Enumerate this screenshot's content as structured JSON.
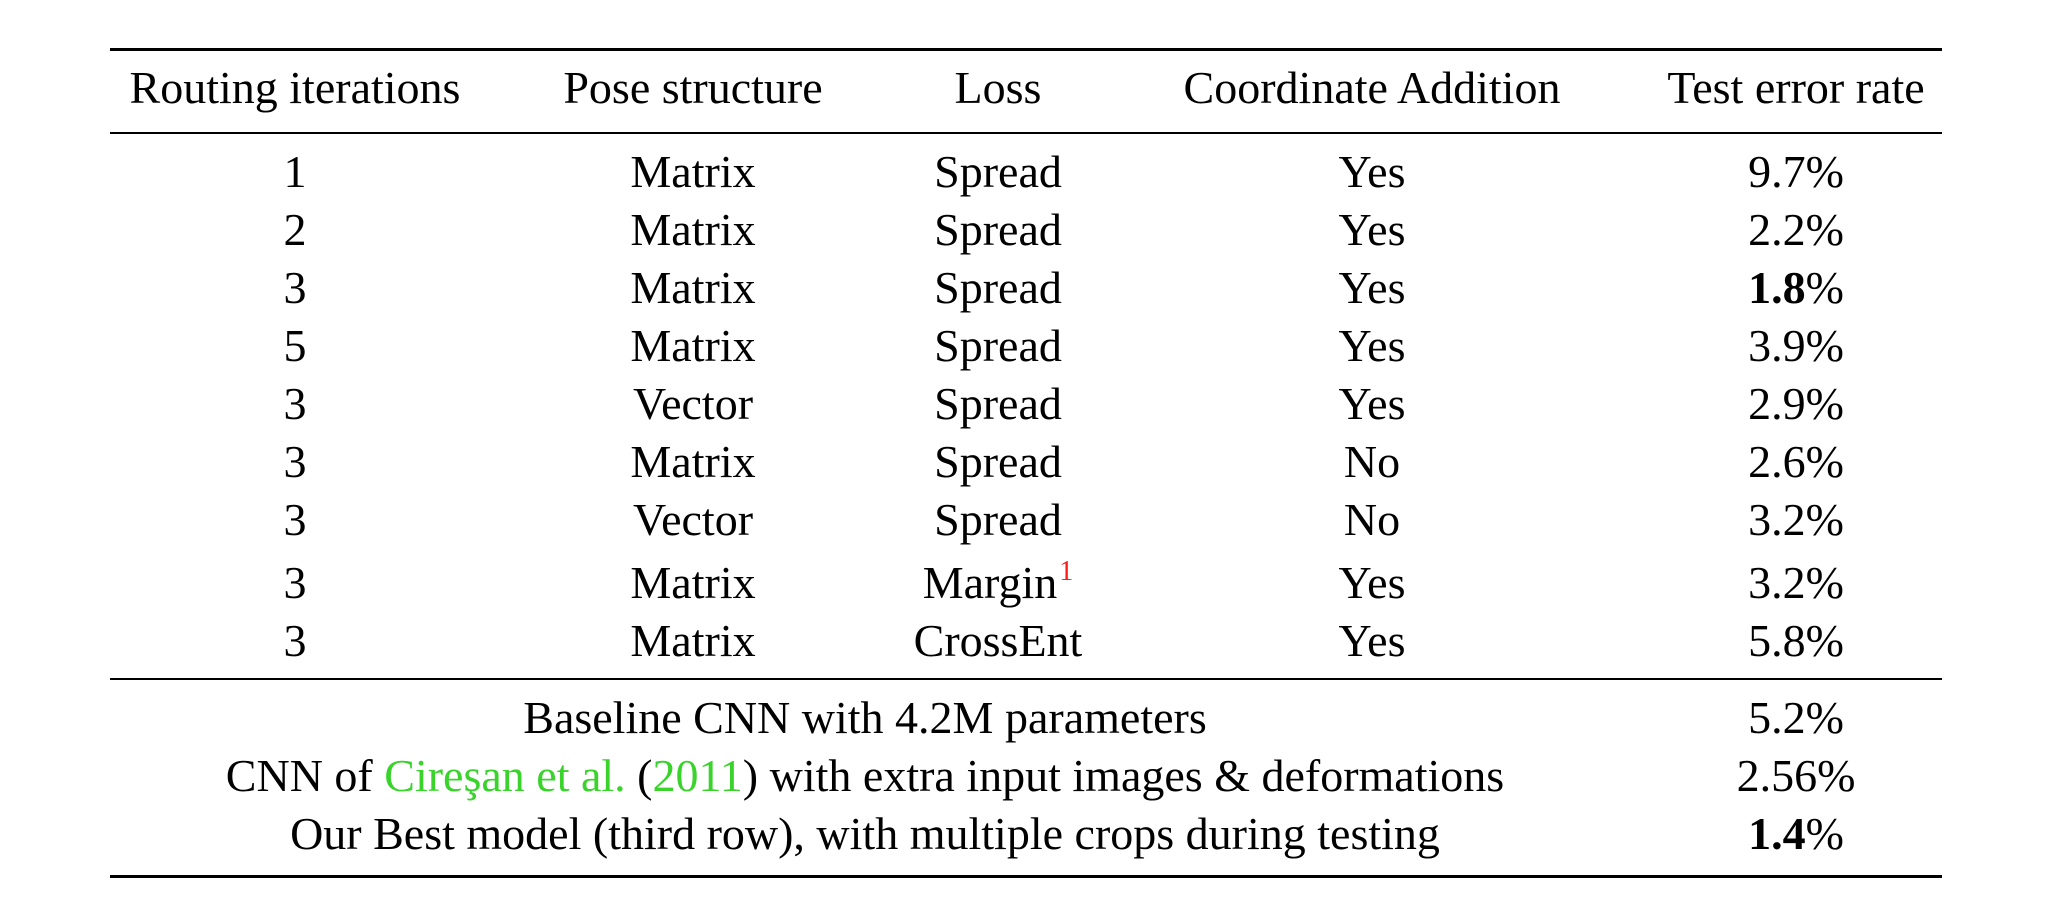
{
  "table": {
    "headers": [
      "Routing iterations",
      "Pose structure",
      "Loss",
      "Coordinate Addition",
      "Test error rate"
    ],
    "rows": [
      {
        "routing": "1",
        "pose": "Matrix",
        "loss": "Spread",
        "footnote": "",
        "coord": "Yes",
        "error_num": "9.7",
        "error_pct": "%",
        "bold": false
      },
      {
        "routing": "2",
        "pose": "Matrix",
        "loss": "Spread",
        "footnote": "",
        "coord": "Yes",
        "error_num": "2.2",
        "error_pct": "%",
        "bold": false
      },
      {
        "routing": "3",
        "pose": "Matrix",
        "loss": "Spread",
        "footnote": "",
        "coord": "Yes",
        "error_num": "1.8",
        "error_pct": "%",
        "bold": true
      },
      {
        "routing": "5",
        "pose": "Matrix",
        "loss": "Spread",
        "footnote": "",
        "coord": "Yes",
        "error_num": "3.9",
        "error_pct": "%",
        "bold": false
      },
      {
        "routing": "3",
        "pose": "Vector",
        "loss": "Spread",
        "footnote": "",
        "coord": "Yes",
        "error_num": "2.9",
        "error_pct": "%",
        "bold": false
      },
      {
        "routing": "3",
        "pose": "Matrix",
        "loss": "Spread",
        "footnote": "",
        "coord": "No",
        "error_num": "2.6",
        "error_pct": "%",
        "bold": false
      },
      {
        "routing": "3",
        "pose": "Vector",
        "loss": "Spread",
        "footnote": "",
        "coord": "No",
        "error_num": "3.2",
        "error_pct": "%",
        "bold": false
      },
      {
        "routing": "3",
        "pose": "Matrix",
        "loss": "Margin",
        "footnote": "1",
        "coord": "Yes",
        "error_num": "3.2",
        "error_pct": "%",
        "bold": false
      },
      {
        "routing": "3",
        "pose": "Matrix",
        "loss": "CrossEnt",
        "footnote": "",
        "coord": "Yes",
        "error_num": "5.8",
        "error_pct": "%",
        "bold": false
      }
    ],
    "summary_rows": [
      {
        "parts": [
          {
            "text": "Baseline CNN with 4.2M parameters",
            "style": "plain"
          }
        ],
        "error_num": "5.2",
        "error_pct": "%",
        "bold": false
      },
      {
        "parts": [
          {
            "text": "CNN of ",
            "style": "plain"
          },
          {
            "text": "Cireşan et al.",
            "style": "citation"
          },
          {
            "text": " (",
            "style": "plain"
          },
          {
            "text": "2011",
            "style": "citation"
          },
          {
            "text": ") with extra input images & deformations",
            "style": "plain"
          }
        ],
        "error_num": "2.56",
        "error_pct": "%",
        "bold": false
      },
      {
        "parts": [
          {
            "text": "Our Best model (third row), with multiple crops during testing",
            "style": "plain"
          }
        ],
        "error_num": "1.4",
        "error_pct": "%",
        "bold": true
      }
    ],
    "colors": {
      "text": "#000000",
      "citation": "#39d32b",
      "footnote": "#ff1a1a",
      "rules": "#000000"
    }
  }
}
